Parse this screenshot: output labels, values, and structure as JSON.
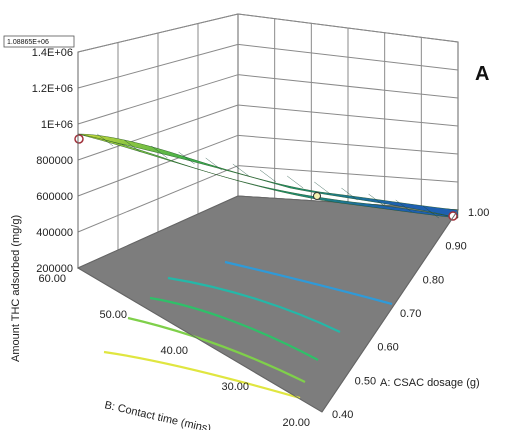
{
  "panel_label": "A",
  "max_box_label": "1.08865E+06",
  "chart_data": {
    "type": "surface3d",
    "title": "",
    "zlabel": "Amount THC adsorbed (mg/g)",
    "xlabel": "B: Contact time (mins)",
    "ylabel": "A: CSAC dosage (g)",
    "z_ticks": [
      "200000",
      "400000",
      "600000",
      "800000",
      "1E+06",
      "1.2E+06",
      "1.4E+06"
    ],
    "z_range": [
      200000,
      1400000
    ],
    "x_ticks": [
      "60.00",
      "50.00",
      "40.00",
      "30.00",
      "20.00"
    ],
    "x_range": [
      60,
      20
    ],
    "y_ticks": [
      "0.40",
      "0.50",
      "0.60",
      "0.70",
      "0.80",
      "0.90",
      "1.00"
    ],
    "y_range": [
      0.4,
      1.0
    ],
    "surface_corners": {
      "time60_dose0.4": 1000000,
      "time20_dose0.4": 560000,
      "time60_dose1.0": 610000,
      "time20_dose1.0": 570000
    },
    "surface_center": 640000,
    "design_points": [
      {
        "time": 60,
        "dose": 0.4,
        "value": 1000000
      },
      {
        "time": 20,
        "dose": 1.0,
        "value": 570000
      }
    ],
    "contour_colors": [
      "#e0e640",
      "#7fd04a",
      "#2fc069",
      "#24b8a8",
      "#2f9ad8"
    ],
    "grid": true,
    "legend": "none"
  }
}
